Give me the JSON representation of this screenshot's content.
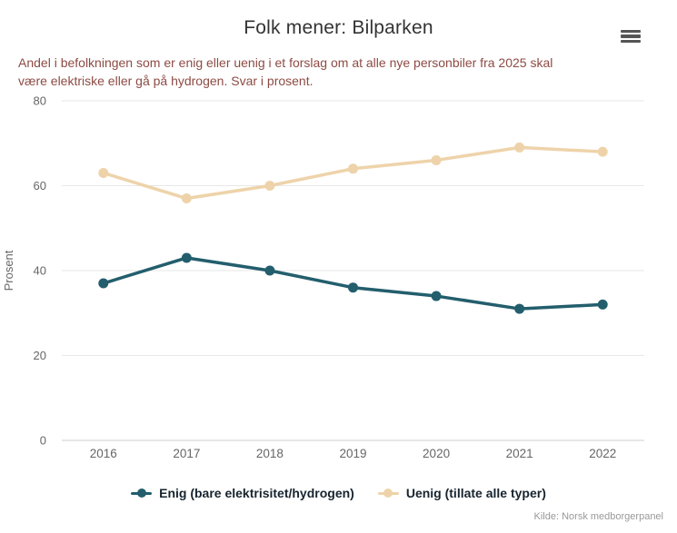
{
  "header": {
    "title": "Folk mener: Bilparken",
    "subtitle_lines": [
      "Andel i befolkningen som er enig eller uenig i et forslag om at alle nye personbiler fra 2025 skal",
      "være elektriske eller gå på hydrogen. Svar i prosent."
    ]
  },
  "menu": {
    "icon": "hamburger-icon",
    "purpose": "chart export context menu"
  },
  "chart_data": {
    "type": "line",
    "categories": [
      "2016",
      "2017",
      "2018",
      "2019",
      "2020",
      "2021",
      "2022"
    ],
    "series": [
      {
        "name": "Enig (bare elektrisitet/hydrogen)",
        "color": "#235e6d",
        "values": [
          37,
          43,
          40,
          36,
          34,
          31,
          32
        ]
      },
      {
        "name": "Uenig (tillate alle typer)",
        "color": "#eed3aa",
        "values": [
          63,
          57,
          60,
          64,
          66,
          69,
          68
        ]
      }
    ],
    "xlabel": "",
    "ylabel": "Prosent",
    "ylim": [
      0,
      80
    ],
    "yticks": [
      0,
      20,
      40,
      60,
      80
    ],
    "grid": true,
    "legend_position": "bottom",
    "marker_radius": 5.5,
    "line_width": 3.5
  },
  "credits": "Kilde: Norsk medborgerpanel",
  "colors": {
    "title": "#333333",
    "subtitle": "#8d4b44",
    "axis_text": "#666666",
    "gridline": "#e7e7e7",
    "axis_line": "#cccccc",
    "legend_text": "#17242e",
    "credits": "#999999",
    "background": "#ffffff"
  }
}
